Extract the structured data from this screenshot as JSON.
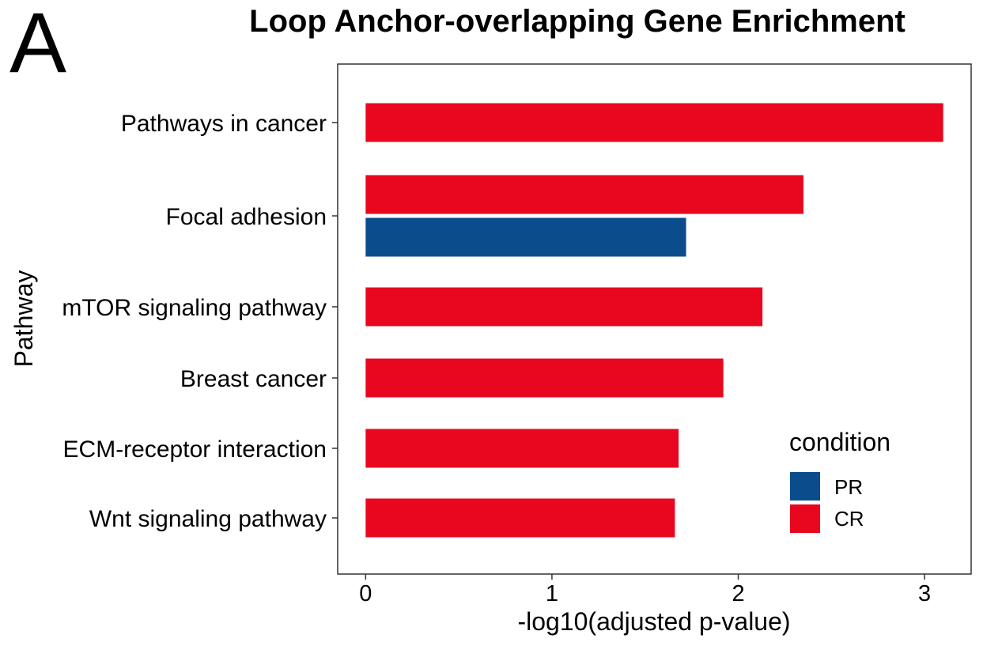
{
  "panel_label": "A",
  "chart_data": {
    "type": "bar",
    "orientation": "horizontal",
    "title": "Loop Anchor-overlapping Gene Enrichment",
    "xlabel": "-log10(adjusted p-value)",
    "ylabel": "Pathway",
    "categories": [
      "Pathways in cancer",
      "Focal adhesion",
      "mTOR signaling pathway",
      "Breast cancer",
      "ECM-receptor interaction",
      "Wnt signaling pathway"
    ],
    "series": [
      {
        "name": "PR",
        "color": "#0B4C8C",
        "values": [
          null,
          1.72,
          null,
          null,
          null,
          null
        ]
      },
      {
        "name": "CR",
        "color": "#E8071E",
        "values": [
          3.1,
          2.35,
          2.13,
          1.92,
          1.68,
          1.66
        ]
      }
    ],
    "xlim": [
      -0.15,
      3.25
    ],
    "xticks": [
      0,
      1,
      2,
      3
    ],
    "grid": false,
    "legend": {
      "title": "condition",
      "position": "bottom-right-inside",
      "entries": [
        "PR",
        "CR"
      ]
    }
  }
}
